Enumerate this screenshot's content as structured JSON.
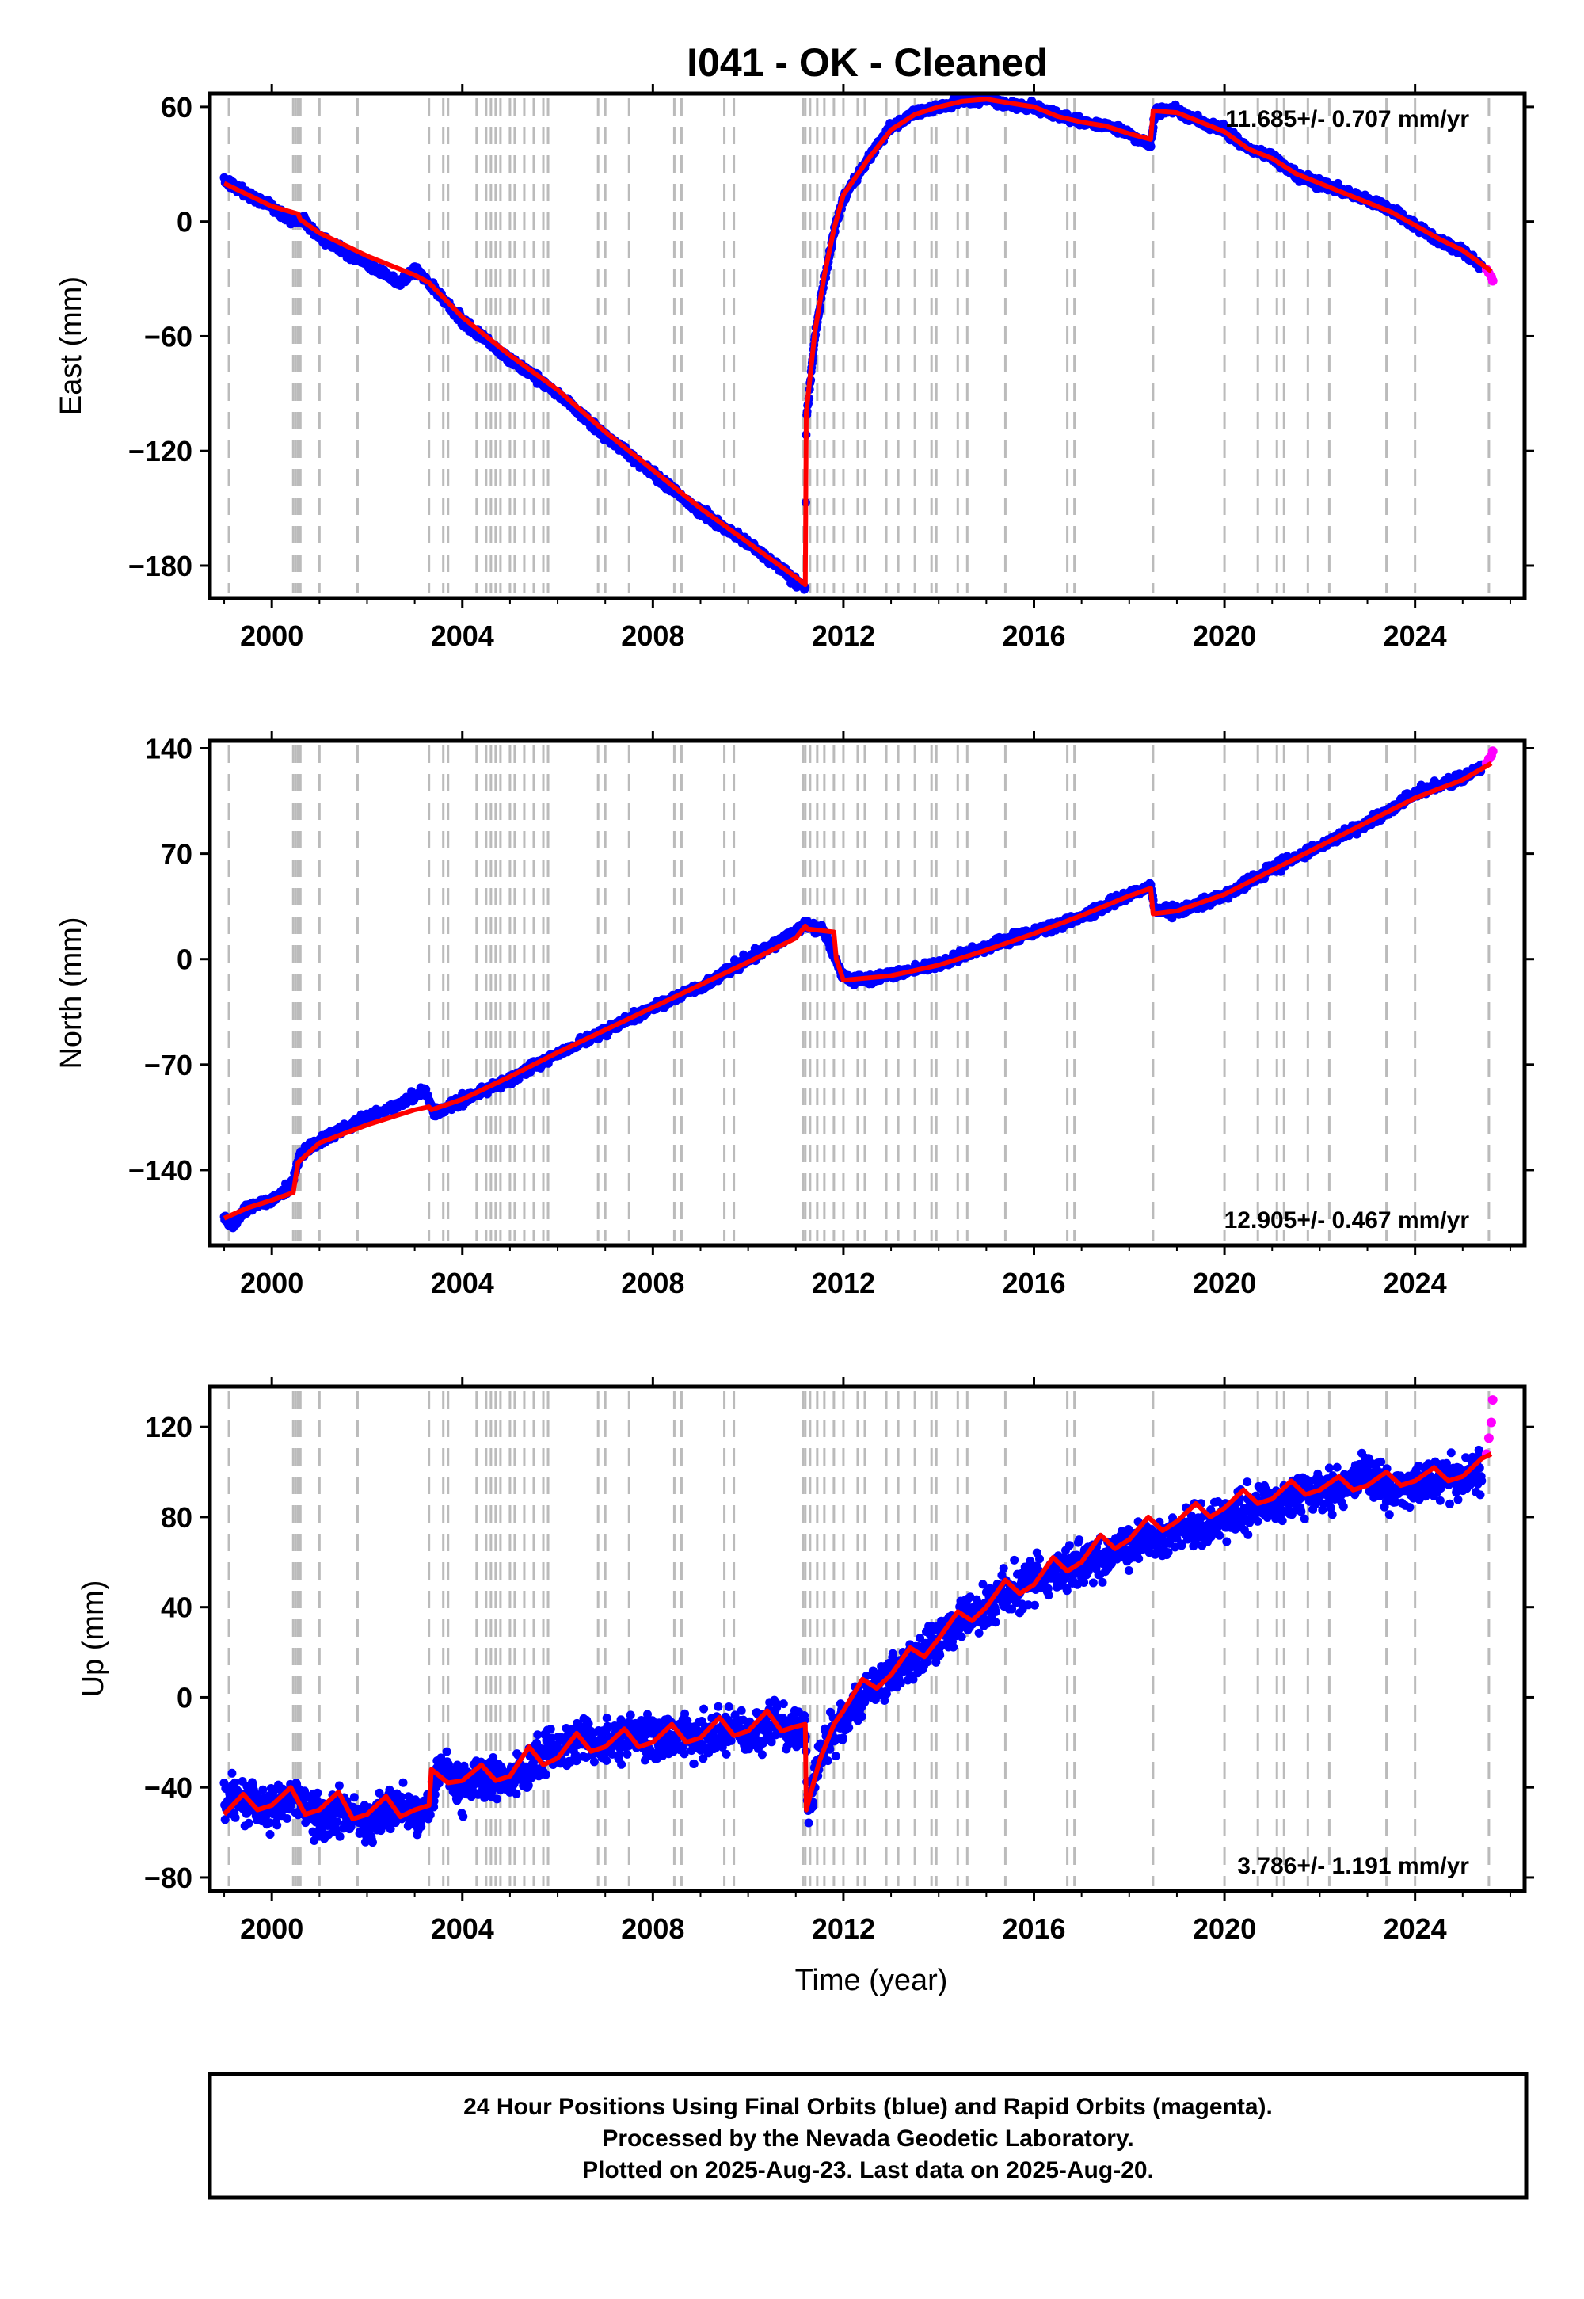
{
  "title": "I041  - OK - Cleaned",
  "colors": {
    "final_orbits": "#0000ff",
    "rapid_orbits": "#ff00ff",
    "model_fit": "#ff0000",
    "event_lines": "#bbbbbb",
    "frame": "#000000"
  },
  "events": [
    1999.1,
    2000.45,
    2000.5,
    2000.55,
    2000.6,
    2001.0,
    2001.8,
    2003.3,
    2003.6,
    2003.7,
    2004.3,
    2004.5,
    2004.6,
    2004.7,
    2004.8,
    2005.0,
    2005.1,
    2005.3,
    2005.5,
    2005.7,
    2005.8,
    2006.85,
    2007.0,
    2007.5,
    2008.45,
    2008.6,
    2009.5,
    2009.7,
    2011.15,
    2011.2,
    2011.3,
    2011.45,
    2011.6,
    2011.8,
    2012.0,
    2012.3,
    2012.45,
    2012.9,
    2013.15,
    2013.5,
    2013.85,
    2013.95,
    2014.4,
    2014.6,
    2015.4,
    2016.7,
    2016.85,
    2018.5,
    2020.0,
    2020.7,
    2021.1,
    2021.25,
    2021.75,
    2022.2,
    2023.4,
    2024.0,
    2025.55
  ],
  "chart_data": [
    {
      "type": "scatter",
      "ylabel": "East (mm)",
      "xlim": [
        1998.7,
        2026.3
      ],
      "ylim": [
        -197,
        67
      ],
      "xticks": [
        2000,
        2004,
        2008,
        2012,
        2016,
        2020,
        2024
      ],
      "yticks": [
        -180,
        -120,
        -60,
        0,
        60
      ],
      "rate": "11.685+/- 0.707 mm/yr",
      "rate_position": "top-right",
      "series": [
        {
          "role": "final_orbits",
          "x": [
            1999.0,
            1999.5,
            2000.0,
            2000.4,
            2000.6,
            2001.0,
            2002.0,
            2002.7,
            2003.0,
            2003.3,
            2004.0,
            2005.0,
            2006.0,
            2007.0,
            2008.0,
            2009.0,
            2010.0,
            2010.5,
            2011.0,
            2011.2,
            2011.22,
            2011.4,
            2011.6,
            2011.8,
            2012.0,
            2012.5,
            2013.0,
            2013.5,
            2014.0,
            2014.5,
            2015.0,
            2015.5,
            2016.0,
            2016.5,
            2017.0,
            2017.5,
            2018.0,
            2018.45,
            2018.55,
            2019.0,
            2019.5,
            2020.0,
            2020.5,
            2021.0,
            2021.5,
            2022.0,
            2022.5,
            2023.0,
            2023.5,
            2024.0,
            2024.5,
            2025.0,
            2025.4
          ],
          "y": [
            22,
            14,
            8,
            0,
            2,
            -8,
            -22,
            -32,
            -25,
            -32,
            -52,
            -72,
            -90,
            -112,
            -132,
            -152,
            -168,
            -178,
            -188,
            -192,
            -105,
            -60,
            -30,
            -5,
            12,
            32,
            50,
            56,
            60,
            63,
            64,
            61,
            60,
            55,
            52,
            50,
            46,
            40,
            58,
            58,
            52,
            48,
            38,
            34,
            24,
            20,
            16,
            11,
            6,
            -2,
            -10,
            -16,
            -24
          ]
        },
        {
          "role": "rapid_orbits",
          "x": [
            2025.5,
            2025.55,
            2025.6,
            2025.63
          ],
          "y": [
            -25,
            -27,
            -29,
            -31
          ]
        },
        {
          "role": "model_fit",
          "x": [
            1999.0,
            2000.0,
            2000.55,
            2000.6,
            2001.0,
            2002.0,
            2003.0,
            2003.3,
            2004.0,
            2005.0,
            2006.0,
            2007.0,
            2008.0,
            2009.0,
            2010.0,
            2011.0,
            2011.2,
            2011.22,
            2011.4,
            2011.6,
            2011.8,
            2012.0,
            2012.5,
            2013.0,
            2013.5,
            2014.0,
            2014.5,
            2015.0,
            2015.5,
            2016.0,
            2016.5,
            2017.0,
            2017.5,
            2018.0,
            2018.45,
            2018.5,
            2019.0,
            2019.5,
            2020.0,
            2020.5,
            2021.0,
            2021.5,
            2022.0,
            2022.5,
            2023.0,
            2023.5,
            2024.0,
            2024.5,
            2025.0,
            2025.6
          ],
          "y": [
            20,
            8,
            4,
            1,
            -6,
            -18,
            -28,
            -32,
            -50,
            -70,
            -88,
            -110,
            -130,
            -150,
            -168,
            -186,
            -190,
            -100,
            -58,
            -28,
            -4,
            14,
            32,
            48,
            56,
            60,
            63,
            64,
            62,
            60,
            55,
            52,
            50,
            46,
            43,
            58,
            57,
            52,
            47,
            38,
            33,
            25,
            20,
            15,
            10,
            5,
            -2,
            -9,
            -15,
            -26
          ]
        }
      ]
    },
    {
      "type": "scatter",
      "ylabel": "North (mm)",
      "xlim": [
        1998.7,
        2026.3
      ],
      "ylim": [
        -190,
        145
      ],
      "xticks": [
        2000,
        2004,
        2008,
        2012,
        2016,
        2020,
        2024
      ],
      "yticks": [
        -140,
        -70,
        0,
        70,
        140
      ],
      "rate": "12.905+/- 0.467 mm/yr",
      "rate_position": "bottom-right",
      "series": [
        {
          "role": "final_orbits",
          "x": [
            1999.0,
            1999.2,
            1999.5,
            2000.0,
            2000.4,
            2000.6,
            2001.0,
            2002.0,
            2003.0,
            2003.2,
            2003.4,
            2004.0,
            2005.0,
            2006.0,
            2007.0,
            2008.0,
            2009.0,
            2010.0,
            2011.0,
            2011.2,
            2011.6,
            2011.8,
            2012.0,
            2012.5,
            2013.0,
            2014.0,
            2015.0,
            2016.0,
            2017.0,
            2018.0,
            2018.45,
            2018.55,
            2019.0,
            2020.0,
            2021.0,
            2022.0,
            2023.0,
            2023.5,
            2024.0,
            2025.0,
            2025.4
          ],
          "y": [
            -172,
            -176,
            -165,
            -160,
            -150,
            -130,
            -120,
            -105,
            -92,
            -86,
            -102,
            -94,
            -80,
            -63,
            -48,
            -32,
            -18,
            0,
            18,
            24,
            18,
            2,
            -12,
            -14,
            -10,
            -3,
            8,
            18,
            28,
            43,
            48,
            32,
            32,
            42,
            60,
            75,
            90,
            100,
            110,
            120,
            128
          ]
        },
        {
          "role": "rapid_orbits",
          "x": [
            2025.5,
            2025.55,
            2025.6,
            2025.63
          ],
          "y": [
            130,
            133,
            135,
            138
          ]
        },
        {
          "role": "model_fit",
          "x": [
            1999.0,
            1999.5,
            2000.0,
            2000.45,
            2000.55,
            2001.0,
            2002.0,
            2003.0,
            2003.3,
            2003.35,
            2004.0,
            2005.0,
            2006.0,
            2007.0,
            2008.0,
            2009.0,
            2010.0,
            2011.0,
            2011.2,
            2011.25,
            2011.8,
            2011.85,
            2012.0,
            2013.0,
            2014.0,
            2015.0,
            2016.0,
            2017.0,
            2018.0,
            2018.45,
            2018.5,
            2019.0,
            2020.0,
            2021.0,
            2022.0,
            2023.0,
            2024.0,
            2025.0,
            2025.6
          ],
          "y": [
            -172,
            -165,
            -160,
            -155,
            -135,
            -122,
            -110,
            -100,
            -98,
            -100,
            -93,
            -78,
            -62,
            -47,
            -32,
            -17,
            -2,
            14,
            22,
            20,
            18,
            0,
            -14,
            -11,
            -4,
            6,
            17,
            29,
            42,
            47,
            30,
            32,
            43,
            59,
            75,
            91,
            107,
            119,
            130
          ]
        }
      ]
    },
    {
      "type": "scatter",
      "ylabel": "Up (mm)",
      "xlabel": "Time (year)",
      "xlim": [
        1998.7,
        2026.3
      ],
      "ylim": [
        -86,
        138
      ],
      "xticks": [
        2000,
        2004,
        2008,
        2012,
        2016,
        2020,
        2024
      ],
      "yticks": [
        -80,
        -40,
        0,
        40,
        80,
        120
      ],
      "rate": "3.786+/- 1.191 mm/yr",
      "rate_position": "bottom-right",
      "series": [
        {
          "role": "final_orbits",
          "x": [
            1999.0,
            1999.5,
            2000.0,
            2000.5,
            2001.0,
            2001.5,
            2002.0,
            2002.5,
            2003.0,
            2003.3,
            2003.5,
            2004.0,
            2004.5,
            2005.0,
            2005.5,
            2006.0,
            2006.5,
            2007.0,
            2007.5,
            2008.0,
            2008.5,
            2009.0,
            2009.5,
            2010.0,
            2010.5,
            2011.0,
            2011.2,
            2011.25,
            2011.5,
            2012.0,
            2012.5,
            2013.0,
            2013.5,
            2014.0,
            2014.5,
            2015.0,
            2015.5,
            2016.0,
            2016.5,
            2017.0,
            2017.5,
            2018.0,
            2018.5,
            2019.0,
            2019.5,
            2020.0,
            2020.5,
            2021.0,
            2021.5,
            2022.0,
            2022.5,
            2023.0,
            2023.5,
            2024.0,
            2024.5,
            2025.0,
            2025.4
          ],
          "y": [
            -48,
            -45,
            -50,
            -44,
            -55,
            -50,
            -56,
            -48,
            -52,
            -50,
            -32,
            -40,
            -35,
            -37,
            -28,
            -24,
            -18,
            -20,
            -17,
            -20,
            -15,
            -18,
            -14,
            -17,
            -12,
            -15,
            -14,
            -52,
            -25,
            -10,
            2,
            10,
            18,
            26,
            35,
            40,
            47,
            52,
            56,
            60,
            64,
            68,
            70,
            74,
            76,
            80,
            82,
            86,
            90,
            92,
            95,
            100,
            92,
            95,
            96,
            98,
            102
          ]
        },
        {
          "role": "rapid_orbits",
          "x": [
            2025.5,
            2025.55,
            2025.6,
            2025.63
          ],
          "y": [
            108,
            115,
            122,
            132
          ]
        },
        {
          "role": "model_fit",
          "x": [
            1999.0,
            1999.4,
            1999.7,
            2000.0,
            2000.4,
            2000.7,
            2001.0,
            2001.4,
            2001.7,
            2002.0,
            2002.4,
            2002.7,
            2003.0,
            2003.3,
            2003.35,
            2003.7,
            2004.0,
            2004.4,
            2004.7,
            2005.0,
            2005.4,
            2005.7,
            2006.0,
            2006.4,
            2006.7,
            2007.0,
            2007.4,
            2007.7,
            2008.0,
            2008.4,
            2008.7,
            2009.0,
            2009.4,
            2009.7,
            2010.0,
            2010.4,
            2010.7,
            2011.0,
            2011.2,
            2011.22,
            2011.5,
            2011.8,
            2012.0,
            2012.4,
            2012.7,
            2013.0,
            2013.4,
            2013.7,
            2014.0,
            2014.4,
            2014.7,
            2015.0,
            2015.4,
            2015.7,
            2016.0,
            2016.4,
            2016.7,
            2017.0,
            2017.4,
            2017.7,
            2018.0,
            2018.4,
            2018.7,
            2019.0,
            2019.4,
            2019.7,
            2020.0,
            2020.4,
            2020.7,
            2021.0,
            2021.4,
            2021.7,
            2022.0,
            2022.4,
            2022.7,
            2023.0,
            2023.4,
            2023.7,
            2024.0,
            2024.4,
            2024.7,
            2025.0,
            2025.4,
            2025.6
          ],
          "y": [
            -52,
            -43,
            -50,
            -48,
            -40,
            -52,
            -50,
            -42,
            -54,
            -52,
            -44,
            -53,
            -50,
            -48,
            -32,
            -38,
            -37,
            -30,
            -37,
            -35,
            -22,
            -30,
            -27,
            -16,
            -24,
            -22,
            -14,
            -22,
            -20,
            -12,
            -20,
            -18,
            -9,
            -17,
            -15,
            -6,
            -15,
            -13,
            -12,
            -50,
            -28,
            -12,
            -6,
            8,
            4,
            10,
            22,
            18,
            26,
            38,
            34,
            40,
            52,
            46,
            50,
            62,
            56,
            60,
            72,
            66,
            70,
            80,
            74,
            78,
            86,
            80,
            84,
            92,
            86,
            88,
            96,
            90,
            92,
            98,
            92,
            94,
            100,
            94,
            96,
            102,
            96,
            98,
            106,
            108
          ]
        }
      ]
    }
  ],
  "footer": {
    "line1": "24 Hour Positions Using Final Orbits (blue) and Rapid Orbits (magenta).",
    "line2": "Processed by the Nevada Geodetic Laboratory.",
    "line3": "Plotted on 2025-Aug-23. Last data on 2025-Aug-20."
  }
}
